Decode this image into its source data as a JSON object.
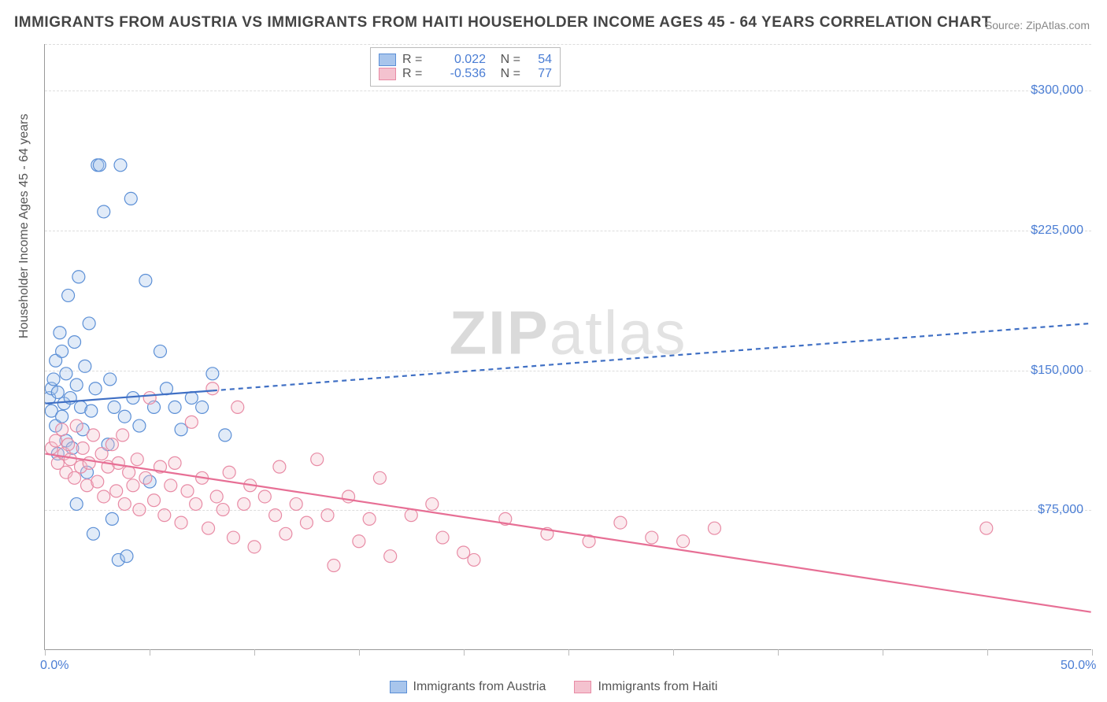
{
  "title": "IMMIGRANTS FROM AUSTRIA VS IMMIGRANTS FROM HAITI HOUSEHOLDER INCOME AGES 45 - 64 YEARS CORRELATION CHART",
  "source": {
    "label": "Source:",
    "name": "ZipAtlas.com"
  },
  "watermark": {
    "bold": "ZIP",
    "thin": "atlas"
  },
  "chart": {
    "type": "scatter",
    "y_axis_title": "Householder Income Ages 45 - 64 years",
    "xlim": [
      0,
      50
    ],
    "ylim": [
      0,
      325000
    ],
    "x_ticks": [
      0,
      5,
      10,
      15,
      20,
      25,
      30,
      35,
      40,
      45,
      50
    ],
    "x_tick_labels_shown": {
      "0": "0.0%",
      "50": "50.0%"
    },
    "y_ticks": [
      75000,
      150000,
      225000,
      300000
    ],
    "y_tick_labels": [
      "$75,000",
      "$150,000",
      "$225,000",
      "$300,000"
    ],
    "grid_color": "#dddddd",
    "axis_color": "#999999",
    "tick_label_color": "#4a7dd4",
    "background_color": "#ffffff",
    "marker_radius": 8,
    "marker_stroke_width": 1.2,
    "marker_fill_opacity": 0.35,
    "series": [
      {
        "name": "Immigrants from Austria",
        "color_fill": "#a8c5ec",
        "color_stroke": "#5b8fd6",
        "r": "0.022",
        "n": "54",
        "trend": {
          "x1": 0,
          "y1": 132000,
          "x2": 50,
          "y2": 175000,
          "solid_until_x": 8,
          "color": "#3f6fc4",
          "width": 2.2,
          "dash": "6,5"
        },
        "points": [
          [
            0.2,
            135000
          ],
          [
            0.3,
            140000
          ],
          [
            0.3,
            128000
          ],
          [
            0.4,
            145000
          ],
          [
            0.5,
            120000
          ],
          [
            0.5,
            155000
          ],
          [
            0.6,
            138000
          ],
          [
            0.6,
            105000
          ],
          [
            0.7,
            170000
          ],
          [
            0.8,
            125000
          ],
          [
            0.8,
            160000
          ],
          [
            0.9,
            132000
          ],
          [
            1.0,
            148000
          ],
          [
            1.0,
            112000
          ],
          [
            1.1,
            190000
          ],
          [
            1.2,
            135000
          ],
          [
            1.3,
            108000
          ],
          [
            1.4,
            165000
          ],
          [
            1.5,
            142000
          ],
          [
            1.5,
            78000
          ],
          [
            1.6,
            200000
          ],
          [
            1.7,
            130000
          ],
          [
            1.8,
            118000
          ],
          [
            1.9,
            152000
          ],
          [
            2.0,
            95000
          ],
          [
            2.1,
            175000
          ],
          [
            2.2,
            128000
          ],
          [
            2.3,
            62000
          ],
          [
            2.4,
            140000
          ],
          [
            2.5,
            260000
          ],
          [
            2.6,
            260000
          ],
          [
            2.8,
            235000
          ],
          [
            3.0,
            110000
          ],
          [
            3.1,
            145000
          ],
          [
            3.2,
            70000
          ],
          [
            3.3,
            130000
          ],
          [
            3.5,
            48000
          ],
          [
            3.6,
            260000
          ],
          [
            3.8,
            125000
          ],
          [
            3.9,
            50000
          ],
          [
            4.1,
            242000
          ],
          [
            4.2,
            135000
          ],
          [
            4.5,
            120000
          ],
          [
            4.8,
            198000
          ],
          [
            5.0,
            90000
          ],
          [
            5.2,
            130000
          ],
          [
            5.5,
            160000
          ],
          [
            5.8,
            140000
          ],
          [
            6.2,
            130000
          ],
          [
            6.5,
            118000
          ],
          [
            7.0,
            135000
          ],
          [
            7.5,
            130000
          ],
          [
            8.0,
            148000
          ],
          [
            8.6,
            115000
          ]
        ]
      },
      {
        "name": "Immigrants from Haiti",
        "color_fill": "#f4c2cf",
        "color_stroke": "#e88ba5",
        "r": "-0.536",
        "n": "77",
        "trend": {
          "x1": 0,
          "y1": 105000,
          "x2": 50,
          "y2": 20000,
          "solid_until_x": 50,
          "color": "#e76f95",
          "width": 2.2,
          "dash": ""
        },
        "points": [
          [
            0.3,
            108000
          ],
          [
            0.5,
            112000
          ],
          [
            0.6,
            100000
          ],
          [
            0.8,
            118000
          ],
          [
            0.9,
            105000
          ],
          [
            1.0,
            95000
          ],
          [
            1.1,
            110000
          ],
          [
            1.2,
            102000
          ],
          [
            1.4,
            92000
          ],
          [
            1.5,
            120000
          ],
          [
            1.7,
            98000
          ],
          [
            1.8,
            108000
          ],
          [
            2.0,
            88000
          ],
          [
            2.1,
            100000
          ],
          [
            2.3,
            115000
          ],
          [
            2.5,
            90000
          ],
          [
            2.7,
            105000
          ],
          [
            2.8,
            82000
          ],
          [
            3.0,
            98000
          ],
          [
            3.2,
            110000
          ],
          [
            3.4,
            85000
          ],
          [
            3.5,
            100000
          ],
          [
            3.7,
            115000
          ],
          [
            3.8,
            78000
          ],
          [
            4.0,
            95000
          ],
          [
            4.2,
            88000
          ],
          [
            4.4,
            102000
          ],
          [
            4.5,
            75000
          ],
          [
            4.8,
            92000
          ],
          [
            5.0,
            135000
          ],
          [
            5.2,
            80000
          ],
          [
            5.5,
            98000
          ],
          [
            5.7,
            72000
          ],
          [
            6.0,
            88000
          ],
          [
            6.2,
            100000
          ],
          [
            6.5,
            68000
          ],
          [
            6.8,
            85000
          ],
          [
            7.0,
            122000
          ],
          [
            7.2,
            78000
          ],
          [
            7.5,
            92000
          ],
          [
            7.8,
            65000
          ],
          [
            8.0,
            140000
          ],
          [
            8.2,
            82000
          ],
          [
            8.5,
            75000
          ],
          [
            8.8,
            95000
          ],
          [
            9.0,
            60000
          ],
          [
            9.2,
            130000
          ],
          [
            9.5,
            78000
          ],
          [
            9.8,
            88000
          ],
          [
            10.0,
            55000
          ],
          [
            10.5,
            82000
          ],
          [
            11.0,
            72000
          ],
          [
            11.2,
            98000
          ],
          [
            11.5,
            62000
          ],
          [
            12.0,
            78000
          ],
          [
            12.5,
            68000
          ],
          [
            13.0,
            102000
          ],
          [
            13.5,
            72000
          ],
          [
            13.8,
            45000
          ],
          [
            14.5,
            82000
          ],
          [
            15.0,
            58000
          ],
          [
            15.5,
            70000
          ],
          [
            16.0,
            92000
          ],
          [
            16.5,
            50000
          ],
          [
            17.5,
            72000
          ],
          [
            18.5,
            78000
          ],
          [
            19.0,
            60000
          ],
          [
            20.0,
            52000
          ],
          [
            20.5,
            48000
          ],
          [
            22.0,
            70000
          ],
          [
            24.0,
            62000
          ],
          [
            26.0,
            58000
          ],
          [
            27.5,
            68000
          ],
          [
            29.0,
            60000
          ],
          [
            30.5,
            58000
          ],
          [
            32.0,
            65000
          ],
          [
            45.0,
            65000
          ]
        ]
      }
    ]
  },
  "legend_bottom": [
    {
      "label": "Immigrants from Austria",
      "fill": "#a8c5ec",
      "stroke": "#5b8fd6"
    },
    {
      "label": "Immigrants from Haiti",
      "fill": "#f4c2cf",
      "stroke": "#e88ba5"
    }
  ]
}
